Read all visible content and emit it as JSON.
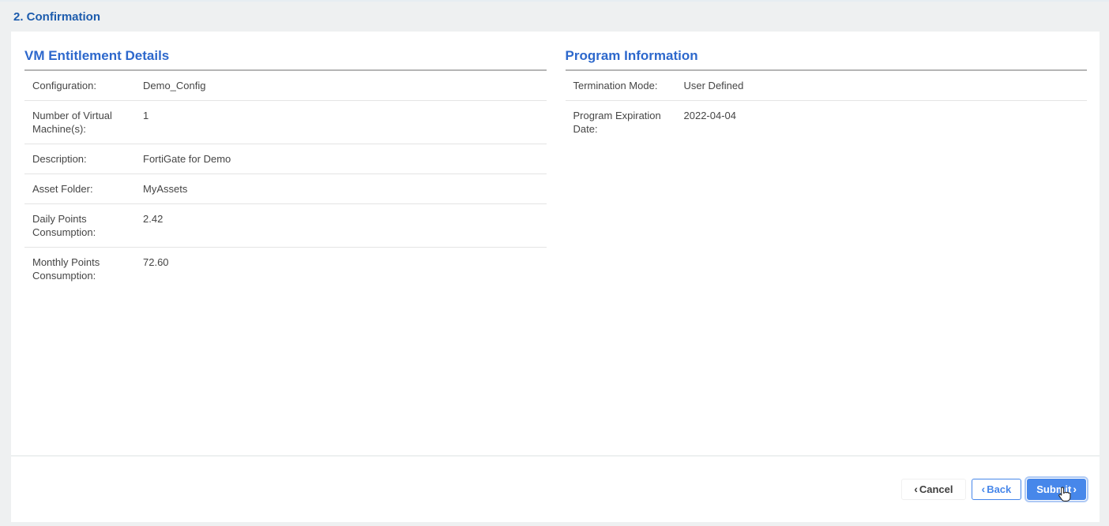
{
  "page": {
    "title": "2. Confirmation"
  },
  "sections": [
    {
      "title": "VM Entitlement Details",
      "rows": [
        {
          "label": "Configuration:",
          "value": "Demo_Config"
        },
        {
          "label": "Number of Virtual Machine(s):",
          "value": "1"
        },
        {
          "label": "Description:",
          "value": "FortiGate for Demo"
        },
        {
          "label": "Asset Folder:",
          "value": "MyAssets"
        },
        {
          "label": "Daily Points Consumption:",
          "value": "2.42"
        },
        {
          "label": "Monthly Points Consumption:",
          "value": "72.60"
        }
      ]
    },
    {
      "title": "Program Information",
      "rows": [
        {
          "label": "Termination Mode:",
          "value": "User Defined"
        },
        {
          "label": "Program Expiration Date:",
          "value": "2022-04-04"
        }
      ]
    }
  ],
  "footer": {
    "cancel_label": "Cancel",
    "back_label": "Back",
    "submit_label": "Submit",
    "back_chevron": "‹",
    "forward_chevron": "›"
  },
  "icons": {
    "cursor": "pointer-hand-cursor"
  },
  "colors": {
    "page_background": "#eef0f1",
    "card_background": "#ffffff",
    "page_title_blue": "#1d5cad",
    "section_title_blue": "#2d68cc",
    "primary_button_blue": "#4787ea",
    "focus_ring_blue": "#aec9f5",
    "text_gray": "#454545",
    "heading_rule_gray": "#b5b5b5",
    "row_divider_gray": "#e4e4e4"
  }
}
